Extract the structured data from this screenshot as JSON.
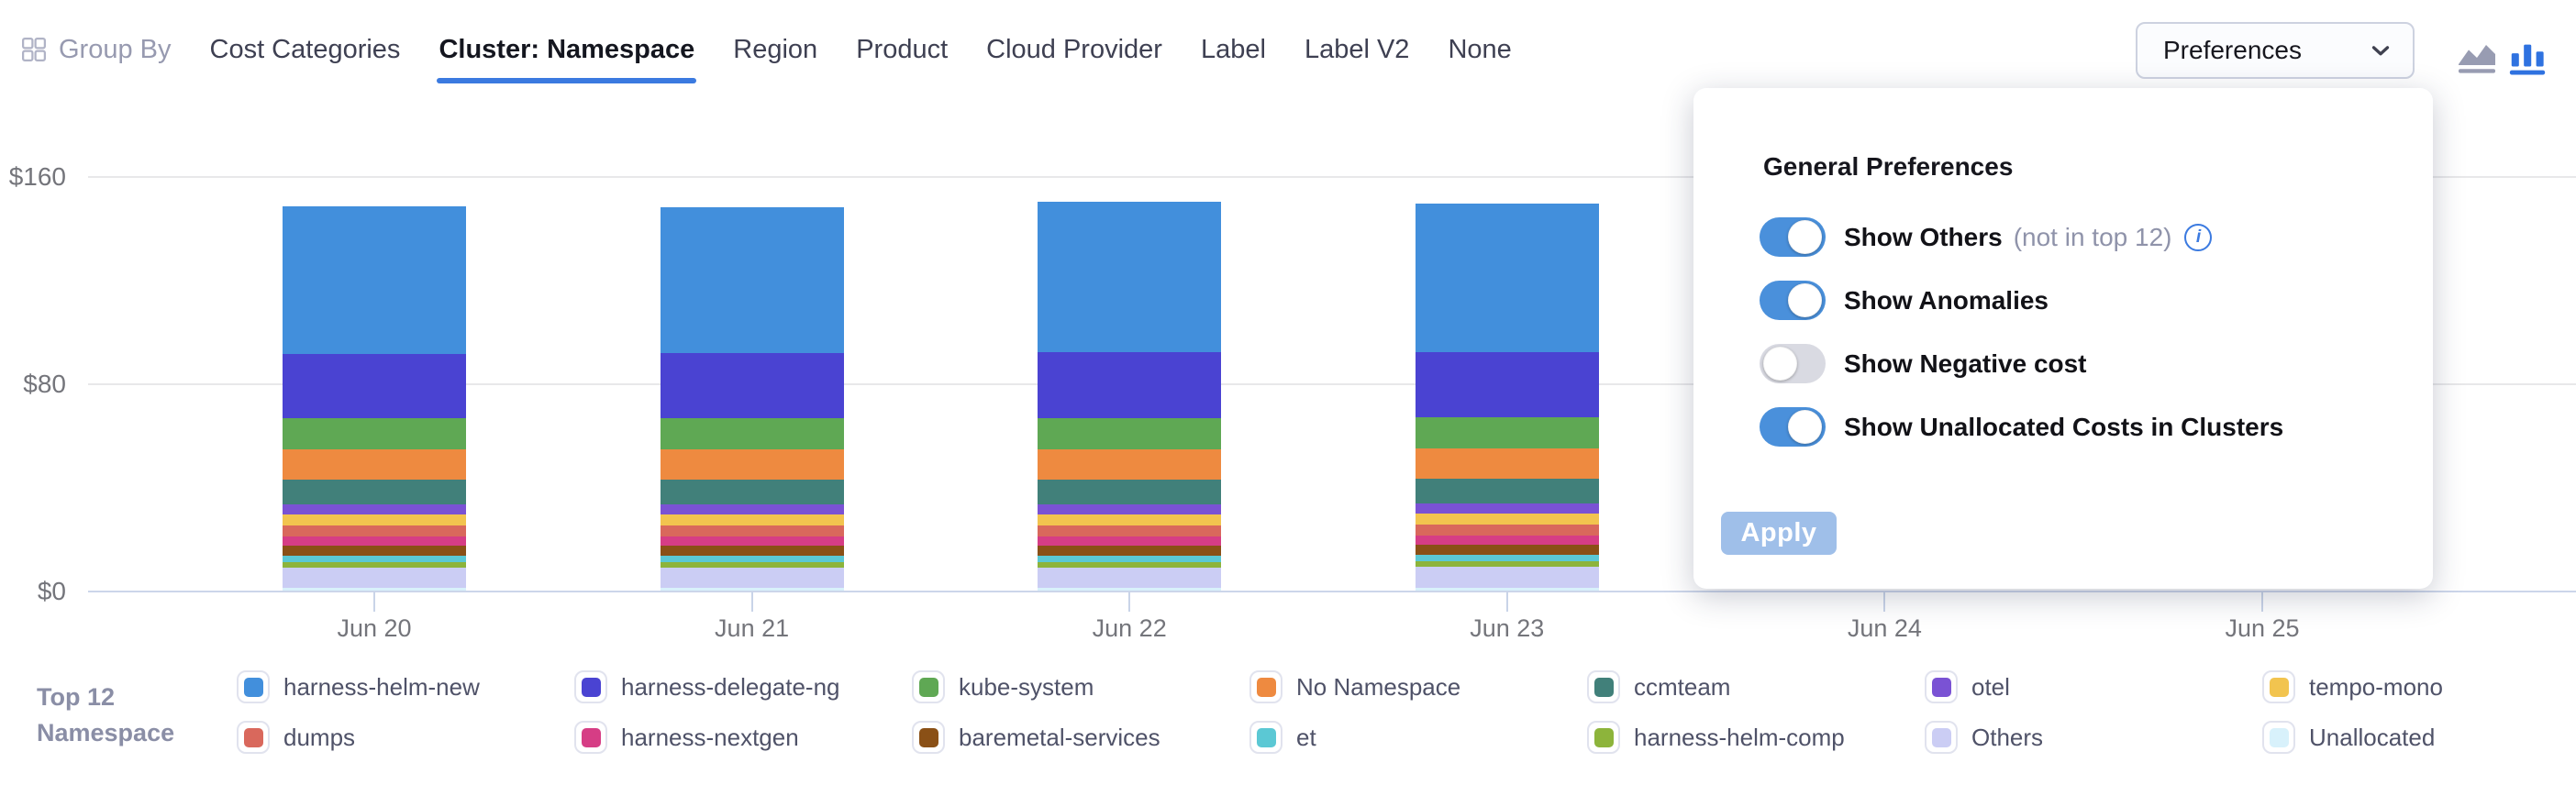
{
  "toolbar": {
    "group_by_label": "Group By",
    "tabs": [
      {
        "label": "Cost Categories",
        "active": false
      },
      {
        "label": "Cluster: Namespace",
        "active": true
      },
      {
        "label": "Region",
        "active": false
      },
      {
        "label": "Product",
        "active": false
      },
      {
        "label": "Cloud Provider",
        "active": false
      },
      {
        "label": "Label",
        "active": false
      },
      {
        "label": "Label V2",
        "active": false
      },
      {
        "label": "None",
        "active": false
      }
    ],
    "preferences_button_label": "Preferences",
    "chart_type_icons": [
      {
        "name": "area-chart-icon",
        "active": false
      },
      {
        "name": "bar-chart-icon",
        "active": true
      }
    ],
    "accent_color": "#3B7AE0"
  },
  "preferences_panel": {
    "title": "General Preferences",
    "toggles": [
      {
        "label": "Show Others",
        "suffix": "(not in top 12)",
        "info_icon": true,
        "on": true
      },
      {
        "label": "Show Anomalies",
        "on": true
      },
      {
        "label": "Show Negative cost",
        "on": false
      },
      {
        "label": "Show Unallocated Costs in Clusters",
        "on": true
      }
    ],
    "apply_label": "Apply",
    "apply_enabled": false,
    "toggle_on_color": "#4A90DB",
    "toggle_off_color": "#D9DAE2"
  },
  "legend": {
    "title_lines": [
      "Top 12",
      "Namespace"
    ]
  },
  "chart_data": {
    "type": "bar",
    "stacked": true,
    "title": "",
    "xlabel": "",
    "ylabel": "",
    "currency": "USD",
    "ylim": [
      0,
      160
    ],
    "grid": true,
    "legend_position": "bottom",
    "categories": [
      "Jun 20",
      "Jun 21",
      "Jun 22",
      "Jun 23",
      "Jun 24",
      "Jun 25"
    ],
    "categories_with_visible_bars": [
      "Jun 20",
      "Jun 21",
      "Jun 22",
      "Jun 23"
    ],
    "note": "Bars above Jun 24 and Jun 25 are covered by the preferences popup",
    "y_ticks": [
      {
        "label": "$0",
        "value": 0
      },
      {
        "label": "$80",
        "value": 80
      },
      {
        "label": "$160",
        "value": 160
      }
    ],
    "series": [
      {
        "name": "harness-helm-new",
        "color": "#428FDC",
        "values": [
          57.0,
          56.5,
          58.0,
          57.5
        ]
      },
      {
        "name": "harness-delegate-ng",
        "color": "#4A43D2",
        "values": [
          25.0,
          25.0,
          25.5,
          25.0
        ]
      },
      {
        "name": "kube-system",
        "color": "#5FA854",
        "values": [
          12.0,
          12.0,
          12.0,
          12.0
        ]
      },
      {
        "name": "No Namespace",
        "color": "#EE8A40",
        "values": [
          11.7,
          11.7,
          11.7,
          11.7
        ]
      },
      {
        "name": "ccmteam",
        "color": "#41807A",
        "values": [
          9.6,
          9.6,
          9.6,
          9.6
        ]
      },
      {
        "name": "otel",
        "color": "#7A52D4",
        "values": [
          3.9,
          3.9,
          3.9,
          3.9
        ]
      },
      {
        "name": "tempo-mono",
        "color": "#F2C44F",
        "values": [
          4.2,
          4.2,
          4.2,
          4.2
        ]
      },
      {
        "name": "dumps",
        "color": "#D9685C",
        "values": [
          4.2,
          4.2,
          4.2,
          4.2
        ]
      },
      {
        "name": "harness-nextgen",
        "color": "#D63D85",
        "values": [
          3.5,
          3.5,
          3.5,
          3.5
        ]
      },
      {
        "name": "baremetal-services",
        "color": "#8A5016",
        "values": [
          3.9,
          3.9,
          3.9,
          3.9
        ]
      },
      {
        "name": "et",
        "color": "#5BC8D4",
        "values": [
          2.5,
          2.5,
          2.5,
          2.5
        ]
      },
      {
        "name": "harness-helm-comp",
        "color": "#8DB43B",
        "values": [
          2.1,
          2.1,
          2.1,
          2.1
        ]
      },
      {
        "name": "Others",
        "color": "#CBCDF4",
        "values": [
          7.8,
          7.9,
          7.9,
          8.2
        ]
      },
      {
        "name": "Unallocated",
        "color": "#D8F1FB",
        "values": [
          1.1,
          1.1,
          1.1,
          1.1
        ]
      }
    ]
  }
}
